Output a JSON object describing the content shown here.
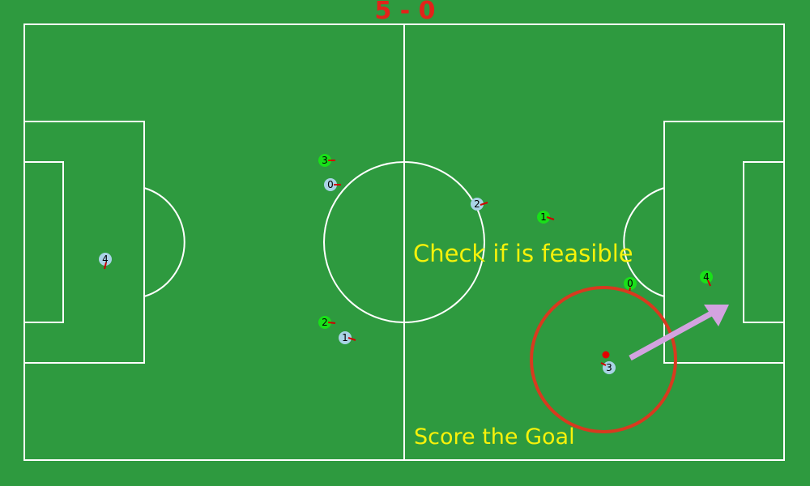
{
  "score": {
    "text": "5 - 0"
  },
  "annotations": {
    "check_feasible": "Check if is feasible",
    "score_goal": "Score the Goal"
  },
  "colors": {
    "pitch": "#2e9a3f",
    "lines": "#ffffff",
    "score": "#e2231a",
    "overlay_text": "#f7f20a",
    "team_green": "#19e019",
    "team_blue": "#a9d3e6",
    "heading_marker": "#d10000",
    "ball": "#e00000",
    "focus_circle": "#d83a1f",
    "pass_arrow": "#d3a3e0"
  },
  "teams": [
    {
      "id": "green",
      "color_key": "team_green",
      "players": [
        {
          "number": "3"
        },
        {
          "number": "1"
        },
        {
          "number": "2"
        },
        {
          "number": "0"
        },
        {
          "number": "4"
        }
      ]
    },
    {
      "id": "blue",
      "color_key": "team_blue",
      "players": [
        {
          "number": "0"
        },
        {
          "number": "2"
        },
        {
          "number": "4"
        },
        {
          "number": "1"
        },
        {
          "number": "3"
        }
      ]
    }
  ],
  "icons": {
    "ball": "ball-icon",
    "pass_arrow": "pass-arrow-icon",
    "focus_circle": "focus-circle-icon"
  }
}
